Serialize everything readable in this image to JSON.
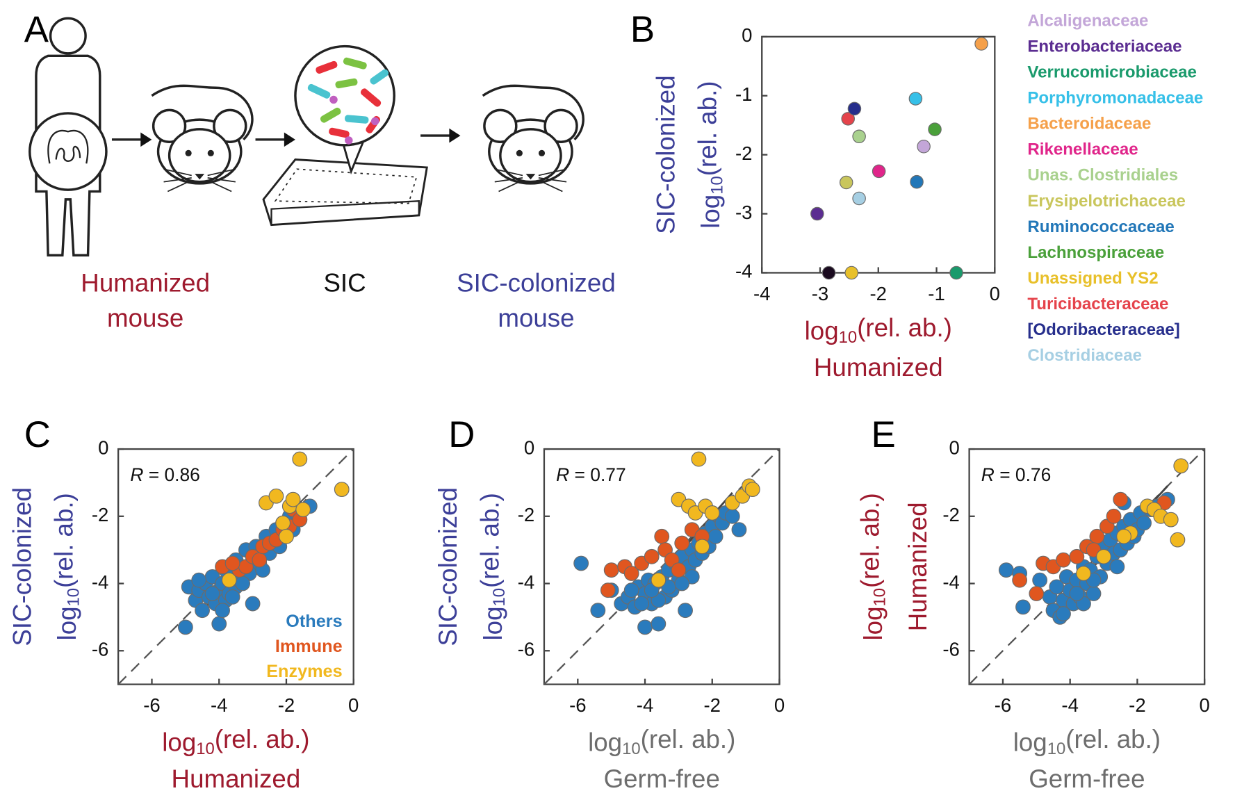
{
  "panel_a": {
    "label": "A",
    "humanized": [
      "Humanized",
      "mouse"
    ],
    "sic": "SIC",
    "colonized": [
      "SIC-colonized",
      "mouse"
    ]
  },
  "chart_data": [
    {
      "type": "scatter",
      "panel": "B",
      "xlim": [
        -4,
        0
      ],
      "ylim": [
        -4,
        0
      ],
      "xticks": [
        -4,
        -3,
        -2,
        -1,
        0
      ],
      "yticks": [
        0,
        -1,
        -2,
        -3,
        -4
      ],
      "xlabel": [
        [
          "log",
          "10",
          "(rel. ab.)"
        ],
        "Humanized"
      ],
      "xlabel_color": "#9e1a2e",
      "ylabel": [
        "SIC-colonized",
        [
          "log",
          "10",
          "(rel. ab.)"
        ]
      ],
      "ylabel_color": "#3c3f98",
      "legend": "right",
      "point_size": 8,
      "series": [
        {
          "name": "Alcaligenaceae",
          "color": "#c3a6d8",
          "x": [
            -1.22
          ],
          "values": [
            -1.86
          ]
        },
        {
          "name": "Enterobacteriaceae",
          "color": "#5b2d91",
          "x": [
            -3.05
          ],
          "values": [
            -3.0
          ]
        },
        {
          "name": "Verrucomicrobiaceae",
          "color": "#1a9a6c",
          "x": [
            -0.66
          ],
          "values": [
            -4
          ]
        },
        {
          "name": "Porphyromonadaceae",
          "color": "#36c0e8",
          "x": [
            -1.36
          ],
          "values": [
            -1.05
          ]
        },
        {
          "name": "Bacteroidaceae",
          "color": "#f5a04a",
          "x": [
            -0.23
          ],
          "values": [
            -0.12
          ]
        },
        {
          "name": "Rikenellaceae",
          "color": "#e0258a",
          "x": [
            -1.99
          ],
          "values": [
            -2.28
          ]
        },
        {
          "name": "Unas. Clostridiales",
          "color": "#a9d18e",
          "x": [
            -2.33
          ],
          "values": [
            -1.69
          ]
        },
        {
          "name": "Erysipelotrichaceae",
          "color": "#c9c65c",
          "x": [
            -2.55
          ],
          "values": [
            -2.47
          ]
        },
        {
          "name": "Ruminococcaceae",
          "color": "#2277b8",
          "x": [
            -1.34
          ],
          "values": [
            -2.46
          ]
        },
        {
          "name": "Lachnospiraceae",
          "color": "#4aa03a",
          "x": [
            -1.03
          ],
          "values": [
            -1.57
          ]
        },
        {
          "name": "Unassigned YS2",
          "color": "#e8c02a",
          "x": [
            -2.46
          ],
          "values": [
            -4
          ]
        },
        {
          "name": "Turicibacteraceae",
          "color": "#e5434b",
          "x": [
            -2.52
          ],
          "values": [
            -1.39
          ]
        },
        {
          "name": "[Odoribacteraceae]",
          "color": "#262e8c",
          "x": [
            -2.41
          ],
          "values": [
            -1.22
          ]
        },
        {
          "name": "Clostridiaceae",
          "color": "#a6cfe3",
          "x": [
            -2.33
          ],
          "values": [
            -2.74
          ]
        },
        {
          "name": null,
          "color": "#1a0a1f",
          "x": [
            -2.85
          ],
          "values": [
            -4
          ]
        }
      ]
    },
    {
      "type": "scatter",
      "panel": "C",
      "xlim": [
        -7,
        0
      ],
      "ylim": [
        -7,
        0
      ],
      "xticks": [
        -6,
        -4,
        -2,
        0
      ],
      "yticks": [
        0,
        -2,
        -4,
        -6
      ],
      "xlabel": [
        [
          "log",
          "10",
          "(rel. ab.)"
        ],
        "Humanized"
      ],
      "xlabel_color": "#9e1a2e",
      "ylabel": [
        "SIC-colonized",
        [
          "log",
          "10",
          "(rel. ab.)"
        ]
      ],
      "ylabel_color": "#3c3f98",
      "annotation": [
        "R",
        " = 0.86"
      ],
      "identity_line": true,
      "fit_line": {
        "x": [
          -4.4,
          -1.4
        ],
        "y": [
          -4.7,
          -1.5
        ]
      },
      "legend": "lower right",
      "point_size": 9,
      "series": [
        {
          "name": "Others",
          "color": "#2a7bbd",
          "x": [
            -5,
            -4.9,
            -4.7,
            -4.6,
            -4.5,
            -4.4,
            -4.3,
            -4.2,
            -4.1,
            -4,
            -4,
            -3.9,
            -3.8,
            -3.8,
            -3.7,
            -3.6,
            -3.5,
            -3.5,
            -3.4,
            -3.3,
            -3.2,
            -3.1,
            -3,
            -3,
            -2.9,
            -2.8,
            -2.7,
            -2.6,
            -2.5,
            -2.4,
            -2.3,
            -2.2,
            -2.1,
            -2,
            -1.9,
            -1.8,
            -1.7,
            -1.6,
            -1.5,
            -1.3,
            -3.6,
            -4.2,
            -3.3,
            -2.7,
            -4.6,
            -3.9
          ],
          "values": [
            -5.3,
            -4.1,
            -4.5,
            -4.2,
            -4.8,
            -4,
            -4.4,
            -3.8,
            -4.6,
            -4.2,
            -5.2,
            -4,
            -3.6,
            -4.5,
            -4.3,
            -3.8,
            -4.1,
            -3.3,
            -3.9,
            -3.5,
            -3,
            -3.7,
            -3.2,
            -4.6,
            -2.9,
            -3.4,
            -3,
            -2.6,
            -3.1,
            -2.8,
            -2.4,
            -2.9,
            -2.2,
            -2.6,
            -2,
            -2.4,
            -1.9,
            -2.1,
            -1.8,
            -1.7,
            -4.4,
            -4.3,
            -4,
            -3.6,
            -3.9,
            -4.8
          ]
        },
        {
          "name": "Immune",
          "color": "#e0561f",
          "x": [
            -3.9,
            -3.4,
            -3.2,
            -3,
            -2.8,
            -2.7,
            -2.5,
            -2.3,
            -2.1,
            -1.9,
            -1.8,
            -1.6,
            -3.6
          ],
          "values": [
            -3.5,
            -3.6,
            -3.5,
            -3.2,
            -3.3,
            -2.9,
            -2.8,
            -2.7,
            -2.4,
            -2.3,
            -1.8,
            -2.1,
            -3.4
          ]
        },
        {
          "name": "Enzymes",
          "color": "#f1b81f",
          "x": [
            -1.6,
            -0.35,
            -2.6,
            -2.3,
            -1.9,
            -1.8,
            -2.1,
            -3.7,
            -2,
            -1.5
          ],
          "values": [
            -0.3,
            -1.2,
            -1.6,
            -1.4,
            -1.7,
            -1.5,
            -2.2,
            -3.9,
            -2.6,
            -1.8
          ]
        }
      ]
    },
    {
      "type": "scatter",
      "panel": "D",
      "xlim": [
        -7,
        0
      ],
      "ylim": [
        -7,
        0
      ],
      "xticks": [
        -6,
        -4,
        -2,
        0
      ],
      "yticks": [
        0,
        -2,
        -4,
        -6
      ],
      "xlabel": [
        [
          "log",
          "10",
          "(rel. ab.)"
        ],
        "Germ-free"
      ],
      "xlabel_color": "#6d6d6d",
      "ylabel": [
        "SIC-colonized",
        [
          "log",
          "10",
          "(rel. ab.)"
        ]
      ],
      "ylabel_color": "#3c3f98",
      "annotation": [
        "R",
        " = 0.77"
      ],
      "identity_line": true,
      "fit_line": {
        "x": [
          -4.3,
          -1.4
        ],
        "y": [
          -4.6,
          -1.3
        ]
      },
      "point_size": 9,
      "series": [
        {
          "color": "#2a7bbd",
          "x": [
            -5.9,
            -5.4,
            -5,
            -4.7,
            -4.5,
            -4.3,
            -4.2,
            -4,
            -4,
            -3.9,
            -3.8,
            -3.7,
            -3.6,
            -3.5,
            -3.4,
            -3.3,
            -3.2,
            -3.1,
            -3,
            -2.9,
            -2.8,
            -2.7,
            -2.6,
            -2.5,
            -2.4,
            -2.3,
            -2.2,
            -2.1,
            -2,
            -1.9,
            -1.8,
            -1.7,
            -1.6,
            -1.4,
            -1.2,
            -3.6,
            -4.1,
            -3.3,
            -2.6,
            -4.4,
            -3.8,
            -2.9
          ],
          "values": [
            -3.4,
            -4.8,
            -4.2,
            -4.6,
            -4.4,
            -4.7,
            -4.1,
            -5.3,
            -4.3,
            -3.9,
            -4.6,
            -4,
            -5.2,
            -3.8,
            -4.4,
            -3.6,
            -4.2,
            -3.4,
            -3.9,
            -3.2,
            -4.8,
            -3.5,
            -3,
            -3.3,
            -2.8,
            -3.1,
            -2.5,
            -2.9,
            -2.3,
            -2.6,
            -2,
            -2.2,
            -1.9,
            -2,
            -2.4,
            -4.5,
            -4.6,
            -4.1,
            -3.8,
            -4.2,
            -4.2,
            -4
          ]
        },
        {
          "color": "#e0561f",
          "x": [
            -5.1,
            -5,
            -4.6,
            -4.4,
            -4.1,
            -3.8,
            -3.5,
            -3.4,
            -3.2,
            -2.9,
            -2.6,
            -2.3,
            -3
          ],
          "values": [
            -4.2,
            -3.6,
            -3.5,
            -3.7,
            -3.4,
            -3.2,
            -2.6,
            -3,
            -3.3,
            -2.8,
            -2.4,
            -2.6,
            -3.6
          ]
        },
        {
          "color": "#f1b81f",
          "x": [
            -2.4,
            -3,
            -2.7,
            -2.5,
            -2.2,
            -2,
            -1.4,
            -1.1,
            -0.9,
            -0.8,
            -3.6,
            -2.3
          ],
          "values": [
            -0.3,
            -1.5,
            -1.7,
            -1.9,
            -1.7,
            -1.9,
            -1.6,
            -1.4,
            -1.1,
            -1.2,
            -3.9,
            -2.9
          ]
        }
      ]
    },
    {
      "type": "scatter",
      "panel": "E",
      "xlim": [
        -7,
        0
      ],
      "ylim": [
        -7,
        0
      ],
      "xticks": [
        -6,
        -4,
        -2,
        0
      ],
      "yticks": [
        0,
        -2,
        -4,
        -6
      ],
      "xlabel": [
        [
          "log",
          "10",
          "(rel. ab.)"
        ],
        "Germ-free"
      ],
      "xlabel_color": "#6d6d6d",
      "ylabel": [
        [
          "log",
          "10",
          "(rel. ab.)"
        ],
        "Humanized"
      ],
      "ylabel_color": "#9e1a2e",
      "annotation": [
        "R",
        " = 0.76"
      ],
      "identity_line": true,
      "fit_line": {
        "x": [
          -4.5,
          -1.1
        ],
        "y": [
          -4.8,
          -1.1
        ]
      },
      "point_size": 9,
      "series": [
        {
          "color": "#2a7bbd",
          "x": [
            -5.9,
            -5.5,
            -5.4,
            -4.9,
            -4.6,
            -4.5,
            -4.4,
            -4.3,
            -4.2,
            -4.1,
            -4,
            -3.9,
            -3.8,
            -3.7,
            -3.6,
            -3.5,
            -3.4,
            -3.3,
            -3.2,
            -3.1,
            -3,
            -2.9,
            -2.8,
            -2.7,
            -2.6,
            -2.5,
            -2.4,
            -2.3,
            -2.2,
            -2.1,
            -2,
            -1.9,
            -1.8,
            -1.6,
            -1.4,
            -1.1,
            -3.6,
            -4.2,
            -3.3,
            -2.6,
            -3.8,
            -2.4
          ],
          "values": [
            -3.6,
            -3.7,
            -4.7,
            -3.9,
            -4.4,
            -4.8,
            -4.1,
            -5,
            -4.5,
            -3.8,
            -4.2,
            -4.6,
            -3.9,
            -4.4,
            -3.5,
            -4,
            -3.6,
            -4.3,
            -3.2,
            -3.8,
            -2.9,
            -3.4,
            -2.7,
            -3.1,
            -2.5,
            -3,
            -2.3,
            -2.8,
            -2.1,
            -2.6,
            -2.4,
            -1.9,
            -2.2,
            -1.8,
            -1.7,
            -1.5,
            -4.6,
            -4.9,
            -3.9,
            -3.5,
            -4.3,
            -1.6
          ]
        },
        {
          "color": "#e0561f",
          "x": [
            -5.5,
            -5,
            -4.8,
            -4.5,
            -4.2,
            -3.8,
            -3.5,
            -3.2,
            -2.9,
            -2.7,
            -2.5,
            -1.2,
            -3.3
          ],
          "values": [
            -3.9,
            -4.3,
            -3.4,
            -3.5,
            -3.3,
            -3.2,
            -2.9,
            -2.6,
            -2.3,
            -2,
            -1.5,
            -1.6,
            -3
          ]
        },
        {
          "color": "#f1b81f",
          "x": [
            -0.7,
            -0.8,
            -1.7,
            -1.5,
            -1.3,
            -1,
            -2.2,
            -3,
            -2.4,
            -3.6
          ],
          "values": [
            -0.5,
            -2.7,
            -1.7,
            -1.8,
            -2,
            -2.1,
            -2.5,
            -3.2,
            -2.6,
            -3.7
          ]
        }
      ]
    }
  ]
}
